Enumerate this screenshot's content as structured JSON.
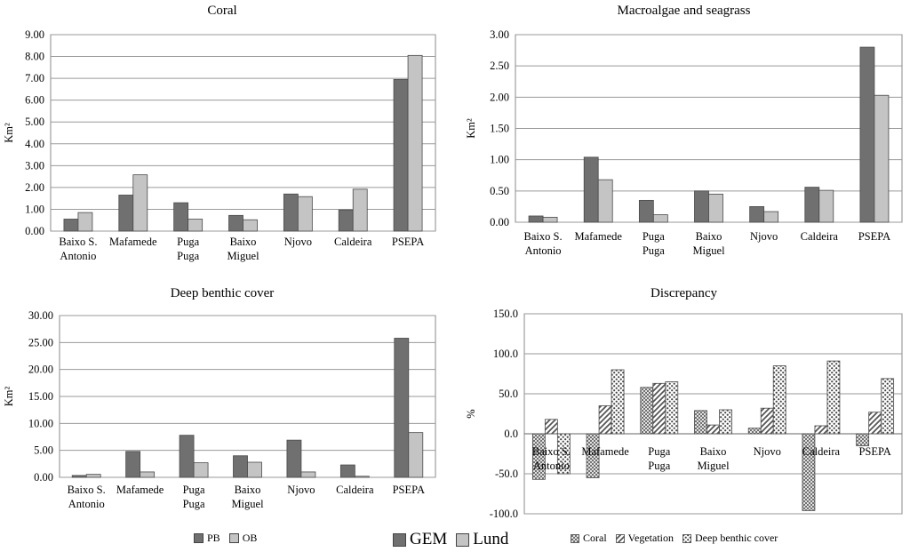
{
  "chart_data": [
    {
      "type": "bar",
      "title": "Coral",
      "ylabel": "Km²",
      "ylim": [
        0,
        9
      ],
      "ticks": [
        "0.00",
        "1.00",
        "2.00",
        "3.00",
        "4.00",
        "5.00",
        "6.00",
        "7.00",
        "8.00",
        "9.00"
      ],
      "categories": [
        [
          "Baixo S.",
          "Antonio"
        ],
        [
          "Mafamede"
        ],
        [
          "Puga",
          "Puga"
        ],
        [
          "Baixo",
          "Miguel"
        ],
        [
          "Njovo"
        ],
        [
          "Caldeira"
        ],
        [
          "PSEPA"
        ]
      ],
      "series": [
        {
          "name": "PB",
          "color": "#707070",
          "values": [
            0.55,
            1.65,
            1.3,
            0.72,
            1.7,
            0.97,
            6.95
          ]
        },
        {
          "name": "OB",
          "color": "#c4c4c4",
          "values": [
            0.85,
            2.58,
            0.55,
            0.52,
            1.58,
            1.92,
            8.05
          ]
        }
      ]
    },
    {
      "type": "bar",
      "title": "Macroalgae and seagrass",
      "ylabel": "Km²",
      "ylim": [
        0,
        3
      ],
      "ticks": [
        "0.00",
        "0.50",
        "1.00",
        "1.50",
        "2.00",
        "2.50",
        "3.00"
      ],
      "categories": [
        [
          "Baixo S.",
          "Antonio"
        ],
        [
          "Mafamede"
        ],
        [
          "Puga",
          "Puga"
        ],
        [
          "Baixo",
          "Miguel"
        ],
        [
          "Njovo"
        ],
        [
          "Caldeira"
        ],
        [
          "PSEPA"
        ]
      ],
      "series": [
        {
          "name": "PB",
          "color": "#707070",
          "values": [
            0.1,
            1.04,
            0.35,
            0.5,
            0.25,
            0.56,
            2.8
          ]
        },
        {
          "name": "OB",
          "color": "#c4c4c4",
          "values": [
            0.08,
            0.68,
            0.12,
            0.45,
            0.17,
            0.51,
            2.03
          ]
        }
      ]
    },
    {
      "type": "bar",
      "title": "Deep benthic cover",
      "ylabel": "Km²",
      "ylim": [
        0,
        30
      ],
      "ticks": [
        "0.00",
        "5.00",
        "10.00",
        "15.00",
        "20.00",
        "25.00",
        "30.00"
      ],
      "categories": [
        [
          "Baixo S.",
          "Antonio"
        ],
        [
          "Mafamede"
        ],
        [
          "Puga",
          "Puga"
        ],
        [
          "Baixo",
          "Miguel"
        ],
        [
          "Njovo"
        ],
        [
          "Caldeira"
        ],
        [
          "PSEPA"
        ]
      ],
      "series": [
        {
          "name": "PB",
          "color": "#707070",
          "values": [
            0.35,
            4.8,
            7.8,
            4.0,
            6.9,
            2.3,
            25.8
          ]
        },
        {
          "name": "OB",
          "color": "#c4c4c4",
          "values": [
            0.55,
            1.0,
            2.7,
            2.8,
            1.0,
            0.2,
            8.3
          ]
        }
      ]
    },
    {
      "type": "bar",
      "title": "Discrepancy",
      "ylabel": "%",
      "ylim": [
        -100,
        150
      ],
      "ticks": [
        "-100.0",
        "-50.0",
        "0.0",
        "50.0",
        "100.0",
        "150.0"
      ],
      "categories": [
        [
          "Baixo S.",
          "Antonio"
        ],
        [
          "Mafamede"
        ],
        [
          "Puga",
          "Puga"
        ],
        [
          "Baixo",
          "Miguel"
        ],
        [
          "Njovo"
        ],
        [
          "Caldeira"
        ],
        [
          "PSEPA"
        ]
      ],
      "series": [
        {
          "name": "Coral",
          "pattern": "dots",
          "values": [
            -57,
            -55,
            58,
            29,
            7,
            -96,
            -15
          ]
        },
        {
          "name": "Vegetation",
          "pattern": "diag",
          "values": [
            18,
            35,
            63,
            11,
            32,
            10,
            27
          ]
        },
        {
          "name": "Deep benthic cover",
          "pattern": "dense",
          "values": [
            -50,
            80,
            65,
            30,
            85,
            91,
            69
          ]
        }
      ]
    }
  ],
  "legend_left": [
    {
      "label": "PB",
      "color": "#707070"
    },
    {
      "label": "OB",
      "color": "#c4c4c4"
    }
  ],
  "legend_middle": [
    {
      "label": "GEM",
      "color": "#707070"
    },
    {
      "label": "Lund",
      "color": "#c4c4c4"
    }
  ],
  "legend_right": [
    {
      "label": "Coral",
      "pattern": "dots"
    },
    {
      "label": "Vegetation",
      "pattern": "diag"
    },
    {
      "label": "Deep benthic cover",
      "pattern": "dense"
    }
  ]
}
